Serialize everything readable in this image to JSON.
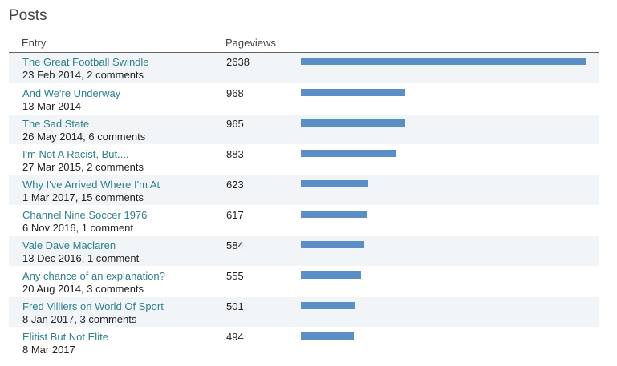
{
  "section_title": "Posts",
  "table": {
    "col_entry": "Entry",
    "col_pageviews": "Pageviews",
    "bar_color": "#5b8ec6",
    "rows": [
      {
        "title": "The Great Football Swindle",
        "meta": "23 Feb 2014, 2 comments",
        "views": 2638
      },
      {
        "title": "And We're Underway",
        "meta": "13 Mar 2014",
        "views": 968
      },
      {
        "title": "The Sad State",
        "meta": "26 May 2014, 6 comments",
        "views": 965
      },
      {
        "title": "I'm Not A Racist, But....",
        "meta": "27 Mar 2015, 2 comments",
        "views": 883
      },
      {
        "title": "Why I've Arrived Where I'm At",
        "meta": "1 Mar 2017, 15 comments",
        "views": 623
      },
      {
        "title": "Channel Nine Soccer 1976",
        "meta": "6 Nov 2016, 1 comment",
        "views": 617
      },
      {
        "title": "Vale Dave Maclaren",
        "meta": "13 Dec 2016, 1 comment",
        "views": 584
      },
      {
        "title": "Any chance of an explanation?",
        "meta": "20 Aug 2014, 3 comments",
        "views": 555
      },
      {
        "title": "Fred Villiers on World Of Sport",
        "meta": "8 Jan 2017, 3 comments",
        "views": 501
      },
      {
        "title": "Elitist But Not Elite",
        "meta": "8 Mar 2017",
        "views": 494
      }
    ]
  }
}
